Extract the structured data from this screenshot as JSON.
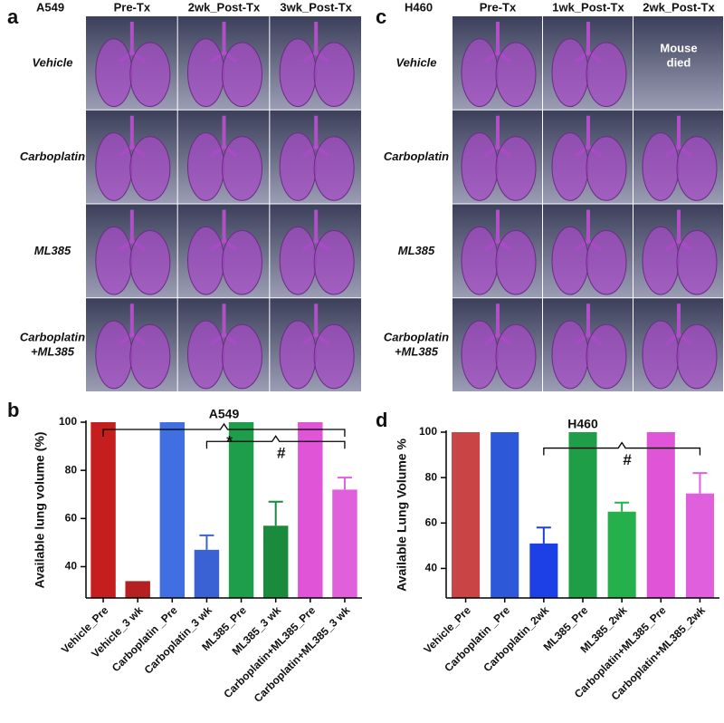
{
  "image_panels": [
    {
      "panel_label": "a",
      "cell_line": "A549",
      "columns": [
        "Pre-Tx",
        "2wk_Post-Tx",
        "3wk_Post-Tx"
      ],
      "rows": [
        [
          "Vehicle"
        ],
        [
          "Carboplatin"
        ],
        [
          "ML385"
        ],
        [
          "Carboplatin",
          "+ML385"
        ]
      ]
    },
    {
      "panel_label": "c",
      "cell_line": "H460",
      "columns": [
        "Pre-Tx",
        "1wk_Post-Tx",
        "2wk_Post-Tx"
      ],
      "rows": [
        [
          "Vehicle"
        ],
        [
          "Carboplatin"
        ],
        [
          "ML385"
        ],
        [
          "Carboplatin",
          "+ML385"
        ]
      ],
      "note": [
        "Mouse",
        "died"
      ]
    }
  ],
  "chart_data": [
    {
      "type": "bar",
      "panel_label": "b",
      "title": "A549",
      "y_label": "Available lung volume (%)",
      "categories": [
        "Vehicle_Pre",
        "Vehicle_3 wk",
        "Carboplatin _Pre",
        "Carboplatin_3 wk",
        "ML385_Pre",
        "ML385_3 wk",
        "Carboplatin+ML385_Pre",
        "Carboplatin+ML385_3 wk"
      ],
      "values": [
        100,
        34,
        100,
        47,
        100,
        57,
        100,
        72
      ],
      "errors": [
        null,
        null,
        null,
        6,
        null,
        10,
        null,
        5
      ],
      "colors": [
        "#c41e1e",
        "#b52020",
        "#3f6fe0",
        "#3b62d4",
        "#1e9d4a",
        "#1a8a3c",
        "#e055d8",
        "#e060dc"
      ],
      "ylim": [
        27,
        100
      ],
      "yticks": [
        40,
        60,
        80,
        100
      ],
      "annotations": [
        "*",
        "#"
      ]
    },
    {
      "type": "bar",
      "panel_label": "d",
      "title": "H460",
      "y_label": "Available Lung Volume %",
      "categories": [
        "Vehicle_Pre",
        "Carboplatin _Pre",
        "Carboplatin_2wk",
        "ML385_Pre",
        "ML385_2wk",
        "Carboplatin+ML385_Pre",
        "Carboplatin+ML385_2wk"
      ],
      "values": [
        100,
        100,
        51,
        100,
        65,
        100,
        73
      ],
      "errors": [
        null,
        null,
        7,
        null,
        4,
        null,
        9
      ],
      "colors": [
        "#c94444",
        "#2d58d8",
        "#1c40e6",
        "#1f9e48",
        "#25b04c",
        "#e055d8",
        "#e05fdc"
      ],
      "ylim": [
        27,
        100
      ],
      "yticks": [
        40,
        60,
        80,
        100
      ],
      "annotations": [
        "#"
      ]
    }
  ]
}
